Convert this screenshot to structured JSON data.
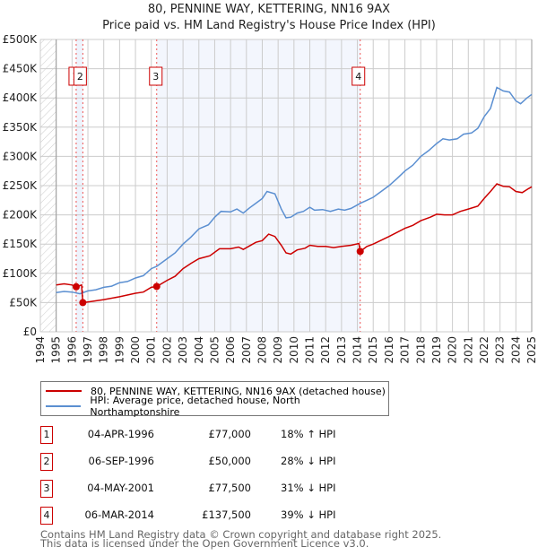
{
  "chart_data": {
    "type": "line",
    "title": "80, PENNINE WAY, KETTERING, NN16 9AX",
    "subtitle": "Price paid vs. HM Land Registry's House Price Index (HPI)",
    "xlim": [
      1994,
      2025
    ],
    "ylim": [
      0,
      500000
    ],
    "x_ticks": [
      "1994",
      "1995",
      "1996",
      "1997",
      "1998",
      "1999",
      "2000",
      "2001",
      "2002",
      "2003",
      "2004",
      "2005",
      "2006",
      "2007",
      "2008",
      "2009",
      "2010",
      "2011",
      "2012",
      "2013",
      "2014",
      "2015",
      "2016",
      "2017",
      "2018",
      "2019",
      "2020",
      "2021",
      "2022",
      "2023",
      "2024",
      "2025"
    ],
    "y_ticks": [
      {
        "v": 0,
        "label": "£0"
      },
      {
        "v": 50000,
        "label": "£50K"
      },
      {
        "v": 100000,
        "label": "£100K"
      },
      {
        "v": 150000,
        "label": "£150K"
      },
      {
        "v": 200000,
        "label": "£200K"
      },
      {
        "v": 250000,
        "label": "£250K"
      },
      {
        "v": 300000,
        "label": "£300K"
      },
      {
        "v": 350000,
        "label": "£350K"
      },
      {
        "v": 400000,
        "label": "£400K"
      },
      {
        "v": 450000,
        "label": "£450K"
      },
      {
        "v": 500000,
        "label": "£500K"
      }
    ],
    "grid": true,
    "series": [
      {
        "name": "80, PENNINE WAY, KETTERING, NN16 9AX (detached house)",
        "color": "#cc0000",
        "points": [
          [
            1995,
            80
          ],
          [
            1995.5,
            82
          ],
          [
            1996,
            80
          ],
          [
            1996.26,
            77
          ],
          [
            1996.6,
            80
          ],
          [
            1996.68,
            50
          ],
          [
            1997,
            51
          ],
          [
            1998,
            55
          ],
          [
            1999,
            60
          ],
          [
            2000,
            66
          ],
          [
            2000.5,
            68
          ],
          [
            2001,
            76
          ],
          [
            2001.34,
            77.5
          ],
          [
            2002,
            88
          ],
          [
            2002.5,
            95
          ],
          [
            2003,
            108
          ],
          [
            2003.5,
            117
          ],
          [
            2004,
            125
          ],
          [
            2004.7,
            130
          ],
          [
            2005.3,
            142
          ],
          [
            2006,
            142
          ],
          [
            2006.5,
            145
          ],
          [
            2006.8,
            141
          ],
          [
            2007.2,
            147
          ],
          [
            2007.6,
            153
          ],
          [
            2008,
            156
          ],
          [
            2008.4,
            167
          ],
          [
            2008.8,
            163
          ],
          [
            2009.2,
            148
          ],
          [
            2009.5,
            135
          ],
          [
            2009.8,
            133
          ],
          [
            2010.2,
            140
          ],
          [
            2010.7,
            143
          ],
          [
            2011,
            148
          ],
          [
            2011.5,
            146
          ],
          [
            2012,
            146
          ],
          [
            2012.5,
            144
          ],
          [
            2013,
            146
          ],
          [
            2013.6,
            148
          ],
          [
            2014.1,
            151
          ],
          [
            2014.18,
            137.5
          ],
          [
            2014.6,
            146
          ],
          [
            2015,
            150
          ],
          [
            2016,
            163
          ],
          [
            2017,
            177
          ],
          [
            2017.5,
            182
          ],
          [
            2018,
            190
          ],
          [
            2018.6,
            196
          ],
          [
            2019,
            201
          ],
          [
            2019.5,
            200
          ],
          [
            2020,
            200
          ],
          [
            2020.5,
            206
          ],
          [
            2021,
            210
          ],
          [
            2021.6,
            215
          ],
          [
            2022,
            228
          ],
          [
            2022.4,
            240
          ],
          [
            2022.8,
            253
          ],
          [
            2023.2,
            249
          ],
          [
            2023.6,
            248
          ],
          [
            2024,
            240
          ],
          [
            2024.4,
            238
          ],
          [
            2024.8,
            245
          ],
          [
            2025,
            248
          ]
        ]
      },
      {
        "name": "HPI: Average price, detached house, North Northamptonshire",
        "color": "#5b8fd1",
        "points": [
          [
            1995,
            67
          ],
          [
            1995.5,
            69
          ],
          [
            1996,
            68
          ],
          [
            1996.5,
            65
          ],
          [
            1997,
            70
          ],
          [
            1997.5,
            72
          ],
          [
            1998,
            76
          ],
          [
            1998.5,
            78
          ],
          [
            1999,
            84
          ],
          [
            1999.5,
            86
          ],
          [
            2000,
            92
          ],
          [
            2000.5,
            96
          ],
          [
            2001,
            108
          ],
          [
            2001.34,
            112
          ],
          [
            2002,
            125
          ],
          [
            2002.5,
            135
          ],
          [
            2003,
            150
          ],
          [
            2003.5,
            162
          ],
          [
            2004,
            176
          ],
          [
            2004.6,
            183
          ],
          [
            2005,
            196
          ],
          [
            2005.4,
            206
          ],
          [
            2006,
            205
          ],
          [
            2006.4,
            210
          ],
          [
            2006.8,
            203
          ],
          [
            2007.2,
            212
          ],
          [
            2007.6,
            220
          ],
          [
            2008,
            228
          ],
          [
            2008.3,
            240
          ],
          [
            2008.8,
            236
          ],
          [
            2009.2,
            210
          ],
          [
            2009.5,
            195
          ],
          [
            2009.8,
            196
          ],
          [
            2010.2,
            203
          ],
          [
            2010.6,
            206
          ],
          [
            2011,
            213
          ],
          [
            2011.3,
            208
          ],
          [
            2011.8,
            209
          ],
          [
            2012.3,
            206
          ],
          [
            2012.8,
            210
          ],
          [
            2013.2,
            208
          ],
          [
            2013.6,
            211
          ],
          [
            2014.2,
            220
          ],
          [
            2014.6,
            225
          ],
          [
            2015,
            230
          ],
          [
            2015.5,
            240
          ],
          [
            2016,
            250
          ],
          [
            2016.5,
            262
          ],
          [
            2017,
            275
          ],
          [
            2017.5,
            285
          ],
          [
            2018,
            300
          ],
          [
            2018.5,
            310
          ],
          [
            2019,
            322
          ],
          [
            2019.4,
            330
          ],
          [
            2019.8,
            328
          ],
          [
            2020.3,
            330
          ],
          [
            2020.7,
            338
          ],
          [
            2021.2,
            340
          ],
          [
            2021.6,
            348
          ],
          [
            2022,
            368
          ],
          [
            2022.4,
            382
          ],
          [
            2022.8,
            418
          ],
          [
            2023.2,
            412
          ],
          [
            2023.6,
            410
          ],
          [
            2024,
            395
          ],
          [
            2024.3,
            390
          ],
          [
            2024.7,
            400
          ],
          [
            2025,
            406
          ]
        ]
      }
    ],
    "sales": [
      {
        "n": "1",
        "x": 1996.26,
        "price": 77
      },
      {
        "n": "2",
        "x": 1996.68,
        "price": 50
      },
      {
        "n": "3",
        "x": 2001.34,
        "price": 77.5
      },
      {
        "n": "4",
        "x": 2014.18,
        "price": 137.5
      }
    ],
    "y_units": "thousands GBP",
    "legend_placement": "below"
  },
  "legend": [
    {
      "label": "80, PENNINE WAY, KETTERING, NN16 9AX (detached house)",
      "color": "#cc0000"
    },
    {
      "label": "HPI: Average price, detached house, North Northamptonshire",
      "color": "#5b8fd1"
    }
  ],
  "table": [
    {
      "n": "1",
      "date": "04-APR-1996",
      "price": "£77,000",
      "hpi": "18% ↑ HPI"
    },
    {
      "n": "2",
      "date": "06-SEP-1996",
      "price": "£50,000",
      "hpi": "28% ↓ HPI"
    },
    {
      "n": "3",
      "date": "04-MAY-2001",
      "price": "£77,500",
      "hpi": "31% ↓ HPI"
    },
    {
      "n": "4",
      "date": "06-MAR-2014",
      "price": "£137,500",
      "hpi": "39% ↓ HPI"
    }
  ],
  "footer": {
    "line1": "Contains HM Land Registry data © Crown copyright and database right 2025.",
    "line2": "This data is licensed under the Open Government Licence v3.0."
  }
}
